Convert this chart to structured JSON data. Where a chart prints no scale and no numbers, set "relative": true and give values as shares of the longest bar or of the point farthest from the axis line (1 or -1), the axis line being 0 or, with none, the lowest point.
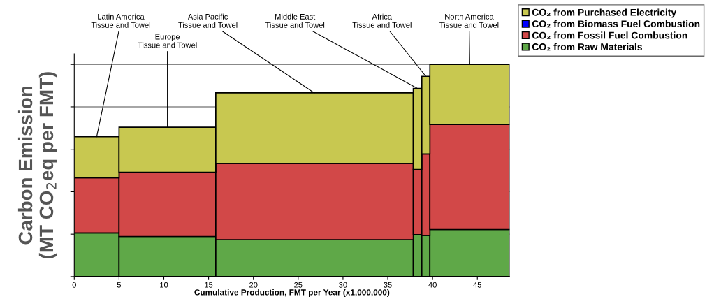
{
  "chart_data": {
    "type": "bar",
    "stacked": true,
    "relative": true,
    "xlabel": "Cumulative Production, FMT per Year (x1,000,000)",
    "ylabel": "Carbon Emission\n(MT CO$_{2}$eq per FMT)",
    "x": [
      2.5,
      10.4,
      26.825,
      38.325,
      39.25,
      44.15
    ],
    "xlim": [
      0,
      48.6
    ],
    "xticks": [
      0,
      5,
      10,
      15,
      20,
      25,
      30,
      35,
      40,
      45
    ],
    "series": [
      {
        "name": "CO₂ from Raw Materials",
        "color": "#5fa848",
        "values": [
          0.206,
          0.189,
          0.174,
          0.198,
          0.194,
          0.222
        ]
      },
      {
        "name": "CO₂ from Fossil Fuel Combustion",
        "color": "#d24848",
        "values": [
          0.26,
          0.303,
          0.359,
          0.307,
          0.384,
          0.495
        ]
      },
      {
        "name": "CO₂ from Biomass Fuel Combustion",
        "color": "#0000ff",
        "values": [
          0,
          0,
          0,
          0,
          0,
          0
        ]
      },
      {
        "name": "CO₂ from Purchased Electricity",
        "color": "#c8c850",
        "values": [
          0.193,
          0.212,
          0.333,
          0.382,
          0.366,
          0.283
        ]
      }
    ],
    "annotations": [
      {
        "text": "Latin America\nTissue and Towel",
        "x": 2.5,
        "y": 0.659
      },
      {
        "text": "Europe\nTissue and Towel",
        "x": 10.4,
        "y": 0.704
      },
      {
        "text": "Asia Pacific\nTissue and Towel",
        "x": 26.8,
        "y": 0.866
      },
      {
        "text": "Middle East\nTissue and Towel",
        "x": 38.3,
        "y": 0.887
      },
      {
        "text": "Africa\nTissue and Towel",
        "x": 39.25,
        "y": 0.944
      },
      {
        "text": "North America\nTissue and Towel",
        "x": 44.15,
        "y": 1.0
      }
    ],
    "grid": "y",
    "legend": "top right"
  }
}
